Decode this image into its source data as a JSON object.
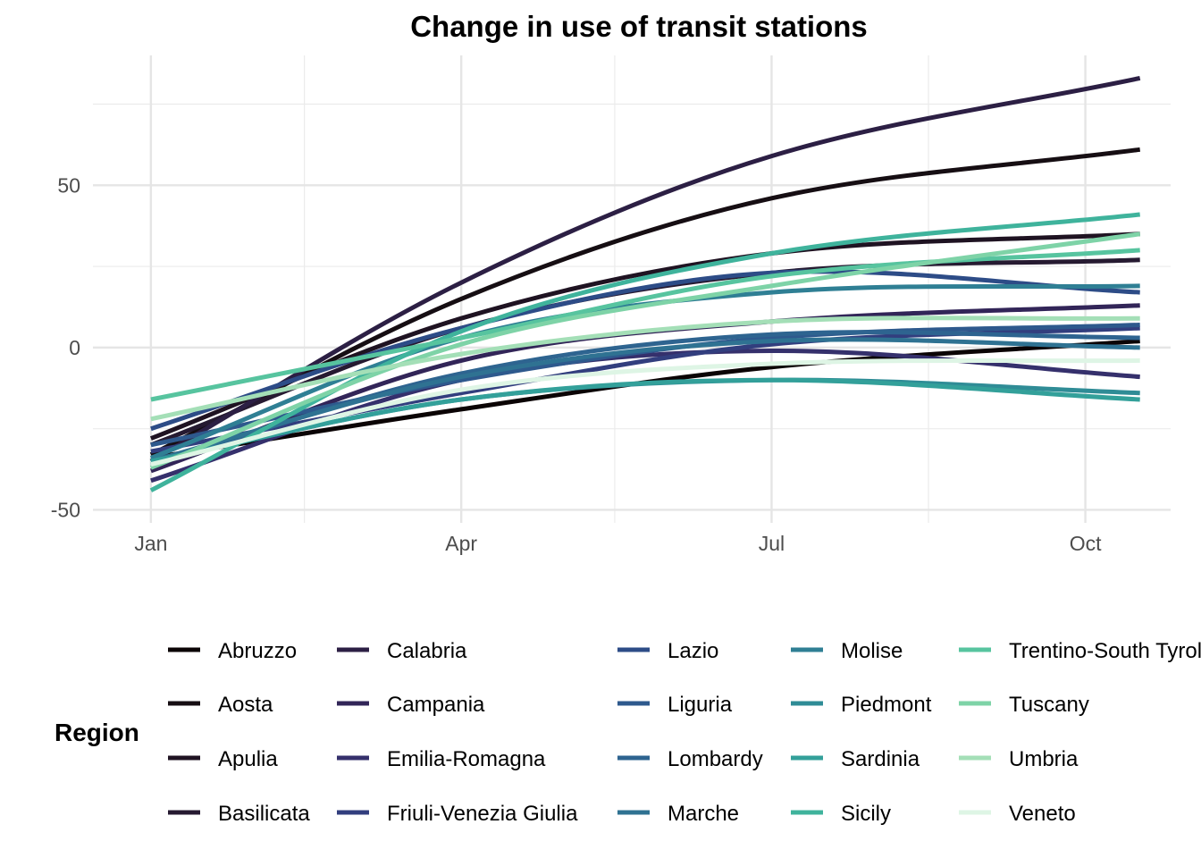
{
  "chart_data": {
    "type": "line",
    "title": "Change in use of transit stations",
    "xlabel": "",
    "ylabel": "",
    "x_ticks": [
      "Jan",
      "Apr",
      "Jul",
      "Oct"
    ],
    "x_tick_dates": [
      "2020-01-01",
      "2020-04-01",
      "2020-07-01",
      "2020-10-01"
    ],
    "x_minor_dates": [
      "2020-02-15",
      "2020-05-16",
      "2020-08-16"
    ],
    "x_range": [
      "2019-12-15",
      "2020-10-26"
    ],
    "ylim": [
      -54,
      90
    ],
    "y_ticks": [
      -50,
      0,
      50
    ],
    "y_minor": [
      -25,
      25,
      75
    ],
    "grid": true,
    "legend": {
      "title": "Region",
      "position": "bottom",
      "columns": 5
    },
    "series_x_dates": [
      "2020-01-01",
      "2020-04-01",
      "2020-07-01",
      "2020-10-17"
    ],
    "series": [
      {
        "name": "Abruzzo",
        "color": "#0b0405",
        "values": [
          -34,
          -19,
          -6,
          2
        ]
      },
      {
        "name": "Aosta",
        "color": "#160e13",
        "values": [
          -33,
          15,
          46,
          61
        ]
      },
      {
        "name": "Apulia",
        "color": "#1f1322",
        "values": [
          -28,
          9,
          29,
          35
        ]
      },
      {
        "name": "Basilicata",
        "color": "#261a31",
        "values": [
          -30,
          6,
          23,
          27
        ]
      },
      {
        "name": "Calabria",
        "color": "#2c1f44",
        "values": [
          -35,
          20,
          59,
          83
        ]
      },
      {
        "name": "Campania",
        "color": "#322558",
        "values": [
          -38,
          -4,
          8,
          13
        ]
      },
      {
        "name": "Emilia-Romagna",
        "color": "#35306c",
        "values": [
          -41,
          -10,
          -1,
          -9
        ]
      },
      {
        "name": "Friuli-Venezia Giulia",
        "color": "#323e7e",
        "values": [
          -32,
          -14,
          1,
          6
        ]
      },
      {
        "name": "Lazio",
        "color": "#2d4c87",
        "values": [
          -25,
          6,
          23,
          17
        ]
      },
      {
        "name": "Liguria",
        "color": "#2e598d",
        "values": [
          -30,
          -10,
          3,
          7
        ]
      },
      {
        "name": "Lombardy",
        "color": "#2e6490",
        "values": [
          -36,
          -8,
          4,
          3
        ]
      },
      {
        "name": "Marche",
        "color": "#2f7292",
        "values": [
          -35,
          -9,
          2,
          0
        ]
      },
      {
        "name": "Molise",
        "color": "#2f7f94",
        "values": [
          -34,
          3,
          17,
          19
        ]
      },
      {
        "name": "Piedmont",
        "color": "#2f8c96",
        "values": [
          -35,
          -16,
          -10,
          -14
        ]
      },
      {
        "name": "Sardinia",
        "color": "#33a09a",
        "values": [
          -35,
          -16,
          -10,
          -16
        ]
      },
      {
        "name": "Sicily",
        "color": "#3fb39c",
        "values": [
          -44,
          5,
          29,
          41
        ]
      },
      {
        "name": "Trentino-South Tyrol",
        "color": "#57c49f",
        "values": [
          -16,
          3,
          22,
          30
        ]
      },
      {
        "name": "Tuscany",
        "color": "#7ed3a7",
        "values": [
          -37,
          1,
          19,
          35
        ]
      },
      {
        "name": "Umbria",
        "color": "#a4dfb7",
        "values": [
          -22,
          -2,
          8,
          9
        ]
      },
      {
        "name": "Veneto",
        "color": "#def5e5",
        "values": [
          -36,
          -13,
          -5,
          -4
        ]
      }
    ]
  }
}
